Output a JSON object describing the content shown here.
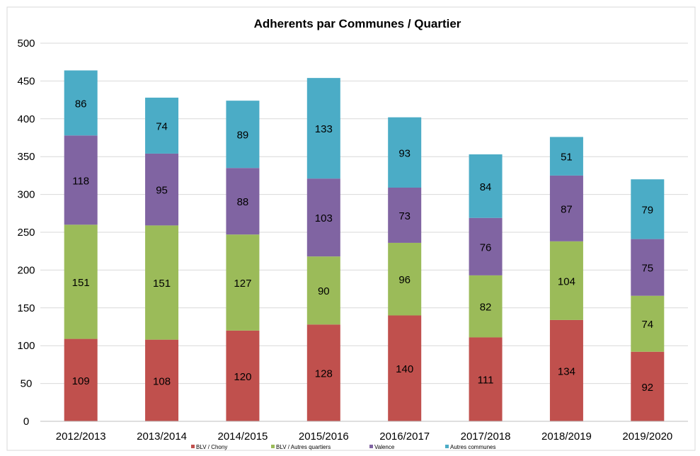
{
  "chart_data": {
    "type": "bar",
    "stacked": true,
    "title": "Adherents par Communes / Quartier",
    "xlabel": "",
    "ylabel": "",
    "ylim": [
      0,
      500
    ],
    "yticks": [
      0,
      50,
      100,
      150,
      200,
      250,
      300,
      350,
      400,
      450,
      500
    ],
    "grid": true,
    "legend_position": "bottom",
    "categories": [
      "2012/2013",
      "2013/2014",
      "2014/2015",
      "2015/2016",
      "2016/2017",
      "2017/2018",
      "2018/2019",
      "2019/2020"
    ],
    "series": [
      {
        "name": "BLV / Chony",
        "color": "#C0504D",
        "values": [
          109,
          108,
          120,
          128,
          140,
          111,
          134,
          92
        ]
      },
      {
        "name": "BLV / Autres quartiers",
        "color": "#9BBB59",
        "values": [
          151,
          151,
          127,
          90,
          96,
          82,
          104,
          74
        ]
      },
      {
        "name": "Valence",
        "color": "#8064A2",
        "values": [
          118,
          95,
          88,
          103,
          73,
          76,
          87,
          75
        ]
      },
      {
        "name": "Autres communes",
        "color": "#4BACC6",
        "values": [
          86,
          74,
          89,
          133,
          93,
          84,
          51,
          79
        ]
      }
    ]
  }
}
